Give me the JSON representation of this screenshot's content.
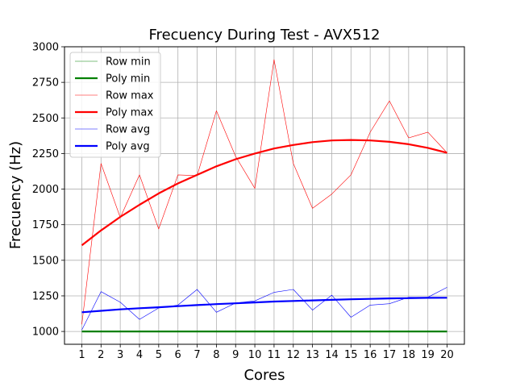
{
  "chart_data": {
    "type": "line",
    "title": "Frecuency During Test - AVX512",
    "xlabel": "Cores",
    "ylabel": "Frecuency (Hz)",
    "x": [
      1,
      2,
      3,
      4,
      5,
      6,
      7,
      8,
      9,
      10,
      11,
      12,
      13,
      14,
      15,
      16,
      17,
      18,
      19,
      20
    ],
    "xlim": [
      0.1,
      20.9
    ],
    "ylim": [
      910,
      3000
    ],
    "yticks": [
      1000,
      1250,
      1500,
      1750,
      2000,
      2250,
      2500,
      2750,
      3000
    ],
    "grid": true,
    "legend_position": "upper-left",
    "series": [
      {
        "name": "Row min",
        "color": "#008000",
        "width": "thin",
        "values": [
          1000,
          1000,
          1000,
          1000,
          1000,
          1000,
          1000,
          1000,
          1000,
          1000,
          1000,
          1000,
          1000,
          1000,
          1000,
          1000,
          1000,
          1000,
          1000,
          1000
        ]
      },
      {
        "name": "Poly min",
        "color": "#008000",
        "width": "thick",
        "values": [
          1000,
          1000,
          1000,
          1000,
          1000,
          1000,
          1000,
          1000,
          1000,
          1000,
          1000,
          1000,
          1000,
          1000,
          1000,
          1000,
          1000,
          1000,
          1000,
          1000
        ]
      },
      {
        "name": "Row max",
        "color": "#ff0000",
        "width": "thin",
        "values": [
          1050,
          2180,
          1800,
          2100,
          1720,
          2100,
          2095,
          2550,
          2230,
          2005,
          2910,
          2180,
          1865,
          1965,
          2100,
          2400,
          2620,
          2360,
          2400,
          2255
        ]
      },
      {
        "name": "Poly max",
        "color": "#ff0000",
        "width": "thick",
        "values": [
          1605,
          1710,
          1805,
          1890,
          1970,
          2040,
          2100,
          2160,
          2210,
          2250,
          2285,
          2310,
          2330,
          2342,
          2345,
          2342,
          2332,
          2315,
          2290,
          2255
        ]
      },
      {
        "name": "Row avg",
        "color": "#0000ff",
        "width": "thin",
        "values": [
          1010,
          1280,
          1205,
          1085,
          1165,
          1185,
          1295,
          1135,
          1200,
          1215,
          1275,
          1295,
          1150,
          1255,
          1100,
          1185,
          1195,
          1240,
          1240,
          1310
        ]
      },
      {
        "name": "Poly avg",
        "color": "#0000ff",
        "width": "thick",
        "values": [
          1135,
          1145,
          1155,
          1163,
          1170,
          1178,
          1185,
          1192,
          1198,
          1204,
          1210,
          1214,
          1218,
          1222,
          1226,
          1229,
          1232,
          1234,
          1236,
          1237
        ]
      }
    ]
  }
}
